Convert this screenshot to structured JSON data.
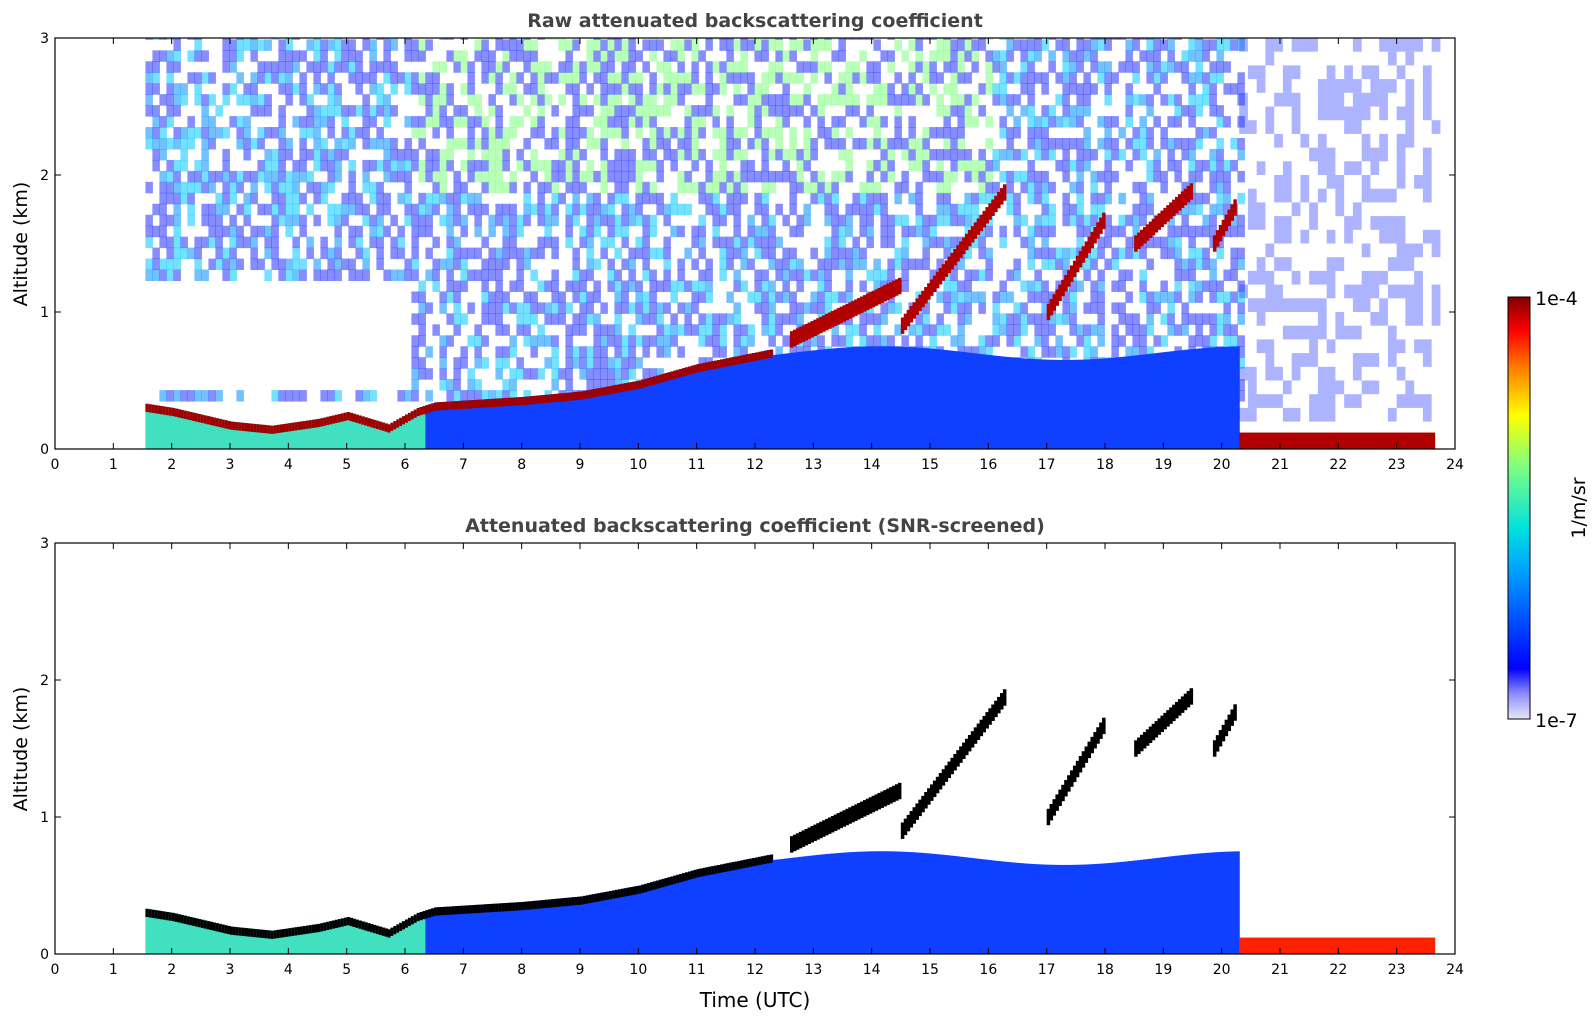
{
  "chart_data": [
    {
      "type": "heatmap",
      "title": "Raw attenuated backscattering coefficient",
      "xlabel": "",
      "ylabel": "Altitude (km)",
      "xlim": [
        0,
        24
      ],
      "ylim": [
        0,
        3
      ],
      "x_ticks": [
        0,
        1,
        2,
        3,
        4,
        5,
        6,
        7,
        8,
        9,
        10,
        11,
        12,
        13,
        14,
        15,
        16,
        17,
        18,
        19,
        20,
        21,
        22,
        23,
        24
      ],
      "y_ticks": [
        0,
        1,
        2,
        3
      ],
      "data_start_time": 1.55,
      "data_end_time": 23.65,
      "boundary_layer_top_km": [
        [
          1.55,
          0.33
        ],
        [
          2.0,
          0.3
        ],
        [
          3.0,
          0.2
        ],
        [
          3.7,
          0.17
        ],
        [
          4.5,
          0.22
        ],
        [
          5.0,
          0.27
        ],
        [
          5.7,
          0.18
        ],
        [
          6.2,
          0.3
        ],
        [
          6.5,
          0.34
        ],
        [
          8.0,
          0.38
        ],
        [
          9.0,
          0.42
        ],
        [
          10.0,
          0.5
        ],
        [
          11.0,
          0.62
        ],
        [
          12.3,
          0.73
        ]
      ],
      "cloud_layers": [
        {
          "t0": 12.6,
          "t1": 14.5,
          "base_km": 0.8,
          "top_km": 1.2
        },
        {
          "t0": 14.5,
          "t1": 16.3,
          "base_km": 0.9,
          "top_km": 1.9
        },
        {
          "t0": 17.0,
          "t1": 18.0,
          "base_km": 1.0,
          "top_km": 1.7
        },
        {
          "t0": 18.5,
          "t1": 19.5,
          "base_km": 1.5,
          "top_km": 1.9
        },
        {
          "t0": 19.85,
          "t1": 20.25,
          "base_km": 1.5,
          "top_km": 1.8
        },
        {
          "t0": 20.3,
          "t1": 23.65,
          "base_km": 0.0,
          "top_km": 0.15
        }
      ]
    },
    {
      "type": "heatmap",
      "title": "Attenuated backscattering coefficient (SNR-screened)",
      "xlabel": "Time (UTC)",
      "ylabel": "Altitude (km)",
      "xlim": [
        0,
        24
      ],
      "ylim": [
        0,
        3
      ],
      "x_ticks": [
        0,
        1,
        2,
        3,
        4,
        5,
        6,
        7,
        8,
        9,
        10,
        11,
        12,
        13,
        14,
        15,
        16,
        17,
        18,
        19,
        20,
        21,
        22,
        23,
        24
      ],
      "y_ticks": [
        0,
        1,
        2,
        3
      ]
    }
  ],
  "colorbar": {
    "label": "1/m/sr",
    "min_label": "1e-7",
    "max_label": "1e-4",
    "scale": "log",
    "colormap": "jet",
    "colors": [
      "#e8e8f8",
      "#0000ff",
      "#00a0ff",
      "#00e0e0",
      "#80ff80",
      "#ffff00",
      "#ff8000",
      "#ff0000",
      "#800000"
    ]
  }
}
